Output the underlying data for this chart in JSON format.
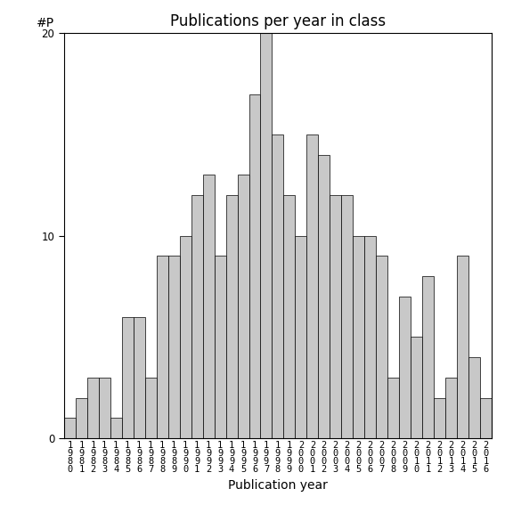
{
  "title": "Publications per year in class",
  "xlabel": "Publication year",
  "ylabel": "#P",
  "years": [
    1980,
    1981,
    1982,
    1983,
    1984,
    1985,
    1986,
    1987,
    1988,
    1989,
    1990,
    1991,
    1992,
    1993,
    1994,
    1995,
    1996,
    1997,
    1998,
    1999,
    2000,
    2001,
    2002,
    2003,
    2004,
    2005,
    2006,
    2007,
    2008,
    2009,
    2010,
    2011,
    2012,
    2013,
    2014,
    2015,
    2016
  ],
  "values": [
    1,
    2,
    3,
    3,
    1,
    6,
    6,
    3,
    9,
    9,
    10,
    12,
    13,
    9,
    12,
    13,
    17,
    20,
    15,
    12,
    10,
    15,
    14,
    12,
    12,
    10,
    10,
    9,
    3,
    7,
    5,
    8,
    2,
    3,
    9,
    4,
    2
  ],
  "bar_color": "#c8c8c8",
  "bar_edge_color": "#000000",
  "ylim": [
    0,
    20
  ],
  "yticks": [
    0,
    10,
    20
  ],
  "background_color": "#ffffff",
  "title_fontsize": 12,
  "label_fontsize": 10,
  "tick_fontsize": 7.5
}
